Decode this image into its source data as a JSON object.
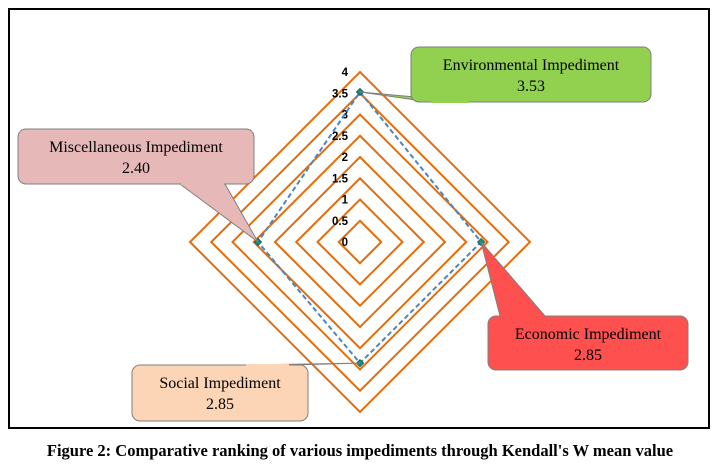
{
  "caption": "Figure 2: Comparative ranking of various impediments through Kendall's W mean value",
  "chart_data": {
    "type": "radar",
    "categories": [
      "Environmental Impediment",
      "Economic Impediment",
      "Social Impediment",
      "Miscellaneous Impediment"
    ],
    "values": [
      3.53,
      2.85,
      2.85,
      2.4
    ],
    "value_labels": [
      "3.53",
      "2.85",
      "2.85",
      "2.40"
    ],
    "rmax": 4,
    "ticks": [
      "0",
      "0.5",
      "1",
      "1.5",
      "2",
      "2.5",
      "3",
      "3.5",
      "4"
    ],
    "grid_color": "#E46C0A",
    "series_color": "#4A86C5",
    "marker_color": "#1A8C7A",
    "callout_colors": [
      "#92D050",
      "#FF5050",
      "#FBD5B5",
      "#E6B9B8"
    ]
  }
}
